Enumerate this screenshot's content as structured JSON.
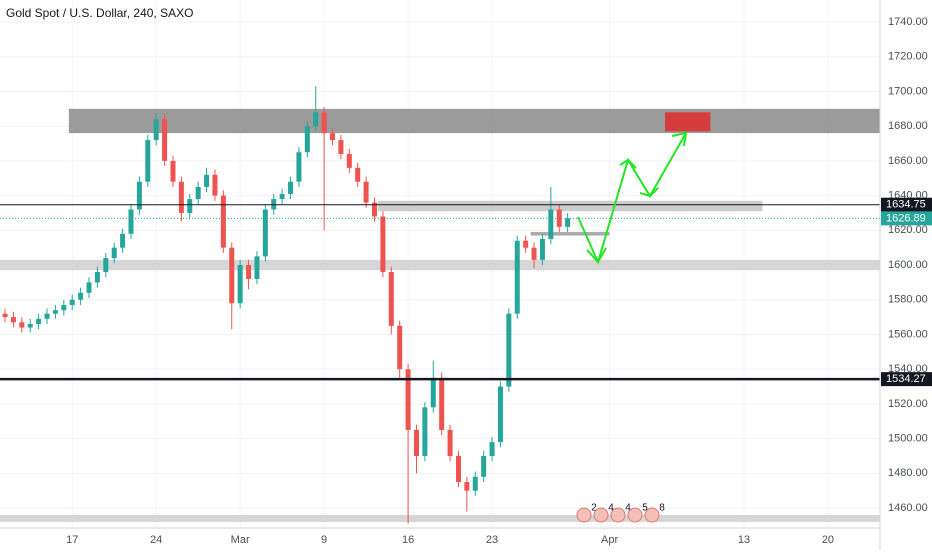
{
  "chart_data": {
    "type": "candlestick",
    "title": "Gold Spot / U.S. Dollar, 240, SAXO",
    "up_color": "#26a69a",
    "down_color": "#ef5350",
    "grid": true,
    "xlim": [
      -4.3,
      48.1
    ],
    "ylim": [
      1448.5,
      1752.7
    ],
    "xticks": [
      {
        "value": 0,
        "label": "17"
      },
      {
        "value": 5,
        "label": "24"
      },
      {
        "value": 10,
        "label": "Mar"
      },
      {
        "value": 15,
        "label": "9"
      },
      {
        "value": 20,
        "label": "16"
      },
      {
        "value": 25,
        "label": "23"
      },
      {
        "value": 32,
        "label": "Apr"
      },
      {
        "value": 40,
        "label": "13"
      },
      {
        "value": 45,
        "label": "20"
      }
    ],
    "yticks": [
      {
        "value": 1460,
        "label": "1460.00"
      },
      {
        "value": 1480,
        "label": "1480.00"
      },
      {
        "value": 1500,
        "label": "1500.00"
      },
      {
        "value": 1520,
        "label": "1520.00"
      },
      {
        "value": 1540,
        "label": "1540.00"
      },
      {
        "value": 1560,
        "label": "1560.00"
      },
      {
        "value": 1580,
        "label": "1580.00"
      },
      {
        "value": 1600,
        "label": "1600.00"
      },
      {
        "value": 1620,
        "label": "1620.00"
      },
      {
        "value": 1640,
        "label": "1640.00"
      },
      {
        "value": 1660,
        "label": "1660.00"
      },
      {
        "value": 1680,
        "label": "1680.00"
      },
      {
        "value": 1700,
        "label": "1700.00"
      },
      {
        "value": 1720,
        "label": "1720.00"
      },
      {
        "value": 1740,
        "label": "1740.00"
      }
    ],
    "x": [
      -4,
      -3.5,
      -3,
      -2.5,
      -2,
      -1.5,
      -1,
      -0.5,
      0,
      0.5,
      1,
      1.5,
      2,
      2.5,
      3,
      3.5,
      4,
      4.5,
      5,
      5.5,
      6,
      6.5,
      7,
      7.5,
      8,
      8.5,
      9,
      9.5,
      10,
      10.5,
      11,
      11.5,
      12,
      12.5,
      13,
      13.5,
      14,
      14.5,
      15,
      15.5,
      16,
      16.5,
      17,
      17.5,
      18,
      18.5,
      19,
      19.5,
      20,
      20.5,
      21,
      21.5,
      22,
      22.5,
      23,
      23.5,
      24,
      24.5,
      25,
      25.5,
      26,
      26.5,
      27,
      27.5,
      28,
      28.5,
      29,
      29.5
    ],
    "open": [
      1572,
      1570,
      1567,
      1564,
      1566,
      1569,
      1572,
      1574,
      1577,
      1580,
      1584,
      1590,
      1596,
      1604,
      1610,
      1618,
      1632,
      1648,
      1672,
      1684,
      1660,
      1648,
      1630,
      1638,
      1645,
      1652,
      1640,
      1610,
      1578,
      1600,
      1592,
      1605,
      1632,
      1638,
      1641,
      1648,
      1665,
      1680,
      1688,
      1676,
      1672,
      1664,
      1656,
      1648,
      1636,
      1628,
      1596,
      1565,
      1540,
      1505,
      1490,
      1518,
      1535,
      1505,
      1490,
      1475,
      1470,
      1478,
      1490,
      1498,
      1530,
      1572,
      1614,
      1610,
      1603,
      1615,
      1632,
      1622
    ],
    "high": [
      1575,
      1573,
      1570,
      1569,
      1572,
      1575,
      1577,
      1580,
      1583,
      1587,
      1593,
      1599,
      1607,
      1613,
      1621,
      1635,
      1651,
      1675,
      1688,
      1687,
      1663,
      1651,
      1641,
      1648,
      1656,
      1655,
      1643,
      1613,
      1603,
      1603,
      1608,
      1635,
      1641,
      1644,
      1651,
      1668,
      1683,
      1703,
      1691,
      1679,
      1675,
      1667,
      1659,
      1651,
      1639,
      1631,
      1599,
      1568,
      1543,
      1508,
      1521,
      1545,
      1538,
      1508,
      1493,
      1478,
      1481,
      1493,
      1501,
      1533,
      1575,
      1617,
      1617,
      1613,
      1618,
      1645,
      1635,
      1630
    ],
    "low": [
      1567,
      1564,
      1561,
      1561,
      1563,
      1566,
      1569,
      1571,
      1574,
      1577,
      1581,
      1587,
      1593,
      1601,
      1607,
      1615,
      1629,
      1645,
      1669,
      1657,
      1645,
      1625,
      1627,
      1635,
      1642,
      1637,
      1607,
      1563,
      1575,
      1586,
      1589,
      1602,
      1629,
      1635,
      1638,
      1645,
      1662,
      1677,
      1620,
      1669,
      1661,
      1653,
      1645,
      1633,
      1625,
      1593,
      1560,
      1535,
      1451,
      1480,
      1487,
      1515,
      1502,
      1487,
      1472,
      1458,
      1467,
      1475,
      1487,
      1495,
      1527,
      1569,
      1607,
      1598,
      1600,
      1612,
      1619,
      1619
    ],
    "close": [
      1570,
      1567,
      1564,
      1566,
      1569,
      1572,
      1574,
      1577,
      1580,
      1584,
      1590,
      1596,
      1604,
      1610,
      1618,
      1632,
      1648,
      1672,
      1684,
      1660,
      1648,
      1630,
      1638,
      1645,
      1652,
      1640,
      1610,
      1578,
      1600,
      1592,
      1605,
      1632,
      1638,
      1641,
      1648,
      1665,
      1680,
      1688,
      1676,
      1672,
      1664,
      1656,
      1648,
      1636,
      1628,
      1596,
      1565,
      1540,
      1505,
      1490,
      1518,
      1535,
      1505,
      1490,
      1475,
      1470,
      1478,
      1490,
      1498,
      1530,
      1572,
      1614,
      1610,
      1603,
      1615,
      1632,
      1622,
      1627
    ],
    "zones": [
      {
        "x": [
          -0.2,
          48.1
        ],
        "y": [
          1676,
          1690
        ],
        "color": "#8a8a8a"
      },
      {
        "x": [
          35.3,
          38.0
        ],
        "y": [
          1677,
          1688
        ],
        "color": "#e02b2b"
      },
      {
        "x": [
          18.2,
          41.1
        ],
        "y": [
          1631,
          1637
        ],
        "color": "#c4c4c4"
      },
      {
        "x": [
          -4.3,
          48.1
        ],
        "y": [
          1597,
          1603
        ],
        "color": "#cfcfcf"
      },
      {
        "x": [
          -4.3,
          48.1
        ],
        "y": [
          1452,
          1456
        ],
        "color": "#cfcfcf"
      },
      {
        "x": [
          27.3,
          32
        ],
        "y": [
          1617,
          1619
        ],
        "color": "#9a9a9a"
      }
    ],
    "price_lines": [
      {
        "value": 1634.75,
        "color": "#131722",
        "width": 1
      },
      {
        "value": 1534.27,
        "color": "#131722",
        "width": 2.5
      },
      {
        "value": 1626.89,
        "color": "#26a69a",
        "width": 1,
        "dotted": true
      }
    ],
    "event_markers": [
      "2",
      "4",
      "4",
      "5",
      "8"
    ]
  }
}
